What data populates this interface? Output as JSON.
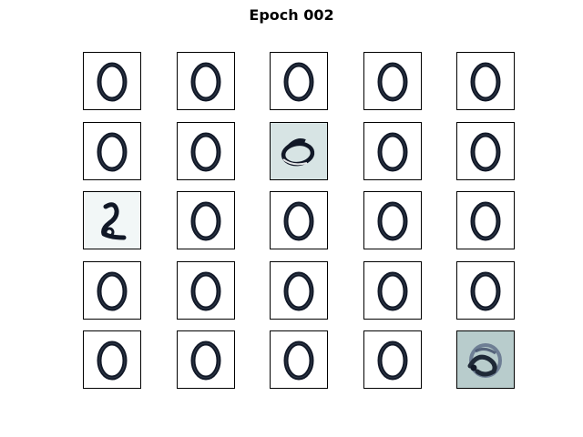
{
  "figure": {
    "title": "Epoch 002"
  },
  "grid": {
    "rows": 5,
    "cols": 5,
    "cells": [
      {
        "digit": "0",
        "style": "clean"
      },
      {
        "digit": "0",
        "style": "clean"
      },
      {
        "digit": "0",
        "style": "clean"
      },
      {
        "digit": "0",
        "style": "clean"
      },
      {
        "digit": "0",
        "style": "clean"
      },
      {
        "digit": "0",
        "style": "clean"
      },
      {
        "digit": "0",
        "style": "clean"
      },
      {
        "digit": "0",
        "style": "tinted",
        "background": "#d7e4e4"
      },
      {
        "digit": "0",
        "style": "clean"
      },
      {
        "digit": "0",
        "style": "clean"
      },
      {
        "digit": "2",
        "style": "faint",
        "background": "#f2f7f7"
      },
      {
        "digit": "0",
        "style": "clean"
      },
      {
        "digit": "0",
        "style": "clean"
      },
      {
        "digit": "0",
        "style": "clean"
      },
      {
        "digit": "0",
        "style": "clean"
      },
      {
        "digit": "0",
        "style": "clean"
      },
      {
        "digit": "0",
        "style": "clean"
      },
      {
        "digit": "0",
        "style": "clean"
      },
      {
        "digit": "0",
        "style": "clean"
      },
      {
        "digit": "0",
        "style": "clean"
      },
      {
        "digit": "0",
        "style": "clean"
      },
      {
        "digit": "0",
        "style": "clean"
      },
      {
        "digit": "0",
        "style": "clean"
      },
      {
        "digit": "0",
        "style": "clean"
      },
      {
        "digit": "scribble",
        "style": "noisy",
        "background": "#b8cccc"
      }
    ]
  },
  "colors": {
    "stroke": "#111827",
    "frame": "#000000",
    "page": "#ffffff"
  }
}
